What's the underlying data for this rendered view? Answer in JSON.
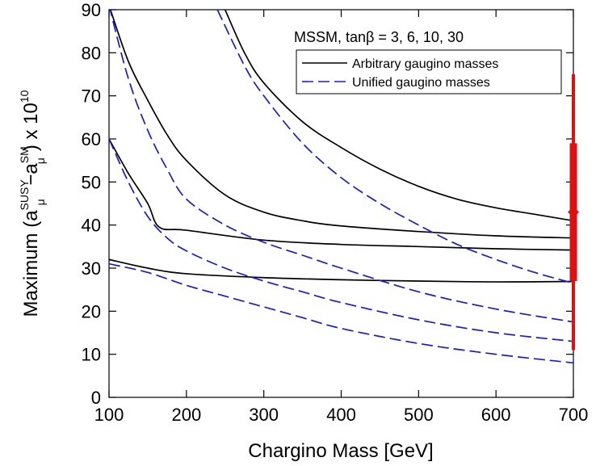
{
  "chart_data": {
    "type": "line",
    "title": "",
    "xlabel": "Chargino Mass  [GeV]",
    "ylabel": {
      "prefix": "Maximum (a",
      "sub1": "μ",
      "sup1": "SUSY",
      "minus": " −a",
      "sub2": "μ",
      "sup2": "SM",
      "suffix": ") x 10",
      "sup3": "10"
    },
    "xlim": [
      100,
      700
    ],
    "ylim": [
      0,
      90
    ],
    "xticks": [
      100,
      200,
      300,
      400,
      500,
      600,
      700
    ],
    "yticks": [
      0,
      10,
      20,
      30,
      40,
      50,
      60,
      70,
      80,
      90
    ],
    "grid": false,
    "legend_title": "MSSM, tanβ = 3, 6, 10, 30",
    "legend_position": "top-right",
    "legend": [
      {
        "label": "Arbitrary gaugino masses",
        "style": "solid",
        "color": "#000000"
      },
      {
        "label": "Unified gaugino masses",
        "style": "dashed",
        "color": "#1a1ad6"
      }
    ],
    "series": [
      {
        "group": "arbitrary",
        "style": "solid",
        "color": "#000000",
        "x": [
          250,
          275,
          300,
          350,
          400,
          450,
          500,
          550,
          600,
          650,
          700
        ],
        "y": [
          90,
          80,
          73,
          64,
          58,
          53,
          49,
          46,
          44,
          42.5,
          41
        ]
      },
      {
        "group": "arbitrary",
        "style": "solid",
        "color": "#000000",
        "x": [
          100,
          125,
          150,
          175,
          200,
          250,
          300,
          350,
          400,
          500,
          600,
          700
        ],
        "y": [
          91,
          78,
          69,
          61,
          55,
          47,
          43,
          41,
          39.8,
          38.5,
          37.5,
          37
        ]
      },
      {
        "group": "arbitrary",
        "style": "solid",
        "color": "#000000",
        "x": [
          100,
          125,
          150,
          165,
          200,
          300,
          400,
          500,
          600,
          700
        ],
        "y": [
          60,
          52,
          45,
          39.5,
          38.8,
          36.5,
          35.5,
          35,
          34.5,
          34.2
        ]
      },
      {
        "group": "arbitrary",
        "style": "solid",
        "color": "#000000",
        "x": [
          100,
          150,
          200,
          300,
          400,
          500,
          600,
          700
        ],
        "y": [
          32,
          30,
          28.7,
          27.8,
          27.3,
          27,
          26.8,
          26.9
        ]
      },
      {
        "group": "unified",
        "style": "dashed",
        "color": "#1a1ad6",
        "x": [
          240,
          275,
          300,
          350,
          400,
          450,
          500,
          550,
          600,
          650,
          700
        ],
        "y": [
          90,
          77,
          70,
          59,
          51,
          45,
          40,
          35.5,
          32,
          29,
          26.5
        ]
      },
      {
        "group": "unified",
        "style": "dashed",
        "color": "#1a1ad6",
        "x": [
          100,
          125,
          150,
          175,
          200,
          250,
          300,
          350,
          400,
          500,
          600,
          700
        ],
        "y": [
          91,
          74,
          62,
          53,
          46,
          40,
          36,
          33,
          30,
          24.5,
          20.5,
          17.5
        ]
      },
      {
        "group": "unified",
        "style": "dashed",
        "color": "#1a1ad6",
        "x": [
          100,
          125,
          150,
          175,
          200,
          250,
          300,
          350,
          400,
          500,
          600,
          700
        ],
        "y": [
          60,
          50,
          42,
          37,
          34,
          30,
          27,
          24.5,
          22,
          18,
          15,
          13
        ]
      },
      {
        "group": "unified",
        "style": "dashed",
        "color": "#1a1ad6",
        "x": [
          100,
          150,
          200,
          250,
          300,
          350,
          400,
          500,
          600,
          700
        ],
        "y": [
          31,
          29,
          26,
          23.5,
          21,
          18.5,
          16,
          12.5,
          10,
          8
        ]
      }
    ],
    "measurement": {
      "x": 700,
      "center": 43,
      "inner_range": [
        27,
        59
      ],
      "outer_range": [
        11,
        75
      ],
      "color": "#e01010"
    }
  }
}
